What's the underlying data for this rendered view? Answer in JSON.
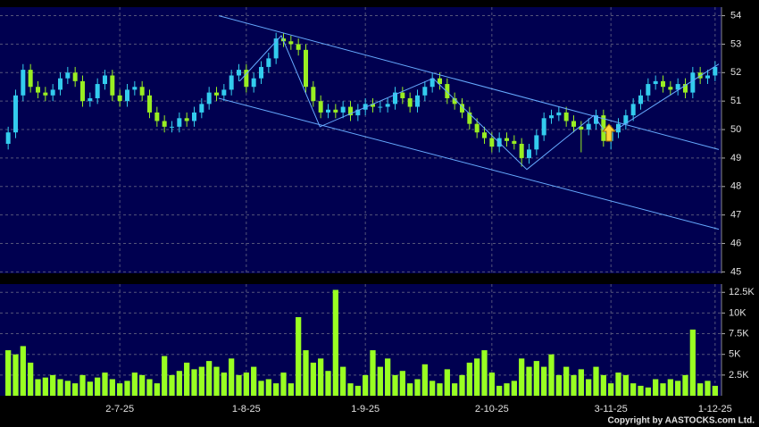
{
  "chart_data": [
    {
      "type": "candlestick",
      "categories": [
        null,
        null,
        null,
        null,
        null,
        null,
        null,
        null,
        null,
        null,
        null,
        null,
        null,
        null,
        null,
        "2-7-25",
        null,
        null,
        null,
        null,
        null,
        null,
        null,
        null,
        null,
        null,
        null,
        null,
        null,
        null,
        null,
        null,
        "1-8-25",
        null,
        null,
        null,
        null,
        null,
        null,
        null,
        null,
        null,
        null,
        null,
        null,
        null,
        null,
        null,
        "1-9-25",
        null,
        null,
        null,
        null,
        null,
        null,
        null,
        null,
        null,
        null,
        null,
        null,
        null,
        null,
        null,
        null,
        "2-10-25",
        null,
        null,
        null,
        null,
        null,
        null,
        null,
        null,
        null,
        null,
        null,
        null,
        null,
        null,
        null,
        "3-11-25",
        null,
        null,
        null,
        null,
        null,
        null,
        null,
        null,
        null,
        null,
        null,
        null,
        null,
        "1-12-25"
      ],
      "open": [
        49.5,
        49.9,
        51.2,
        52.1,
        51.5,
        51.3,
        51.2,
        51.4,
        51.8,
        52.0,
        51.7,
        51.0,
        51.1,
        51.6,
        51.9,
        51.2,
        51.0,
        51.4,
        51.5,
        51.2,
        50.6,
        50.3,
        50.1,
        50.1,
        50.4,
        50.3,
        50.6,
        50.9,
        51.3,
        51.2,
        51.4,
        51.9,
        52.1,
        51.5,
        51.8,
        52.2,
        52.5,
        53.2,
        53.1,
        53.0,
        52.8,
        51.5,
        51.0,
        50.6,
        50.7,
        50.6,
        50.8,
        50.5,
        50.7,
        50.9,
        50.8,
        50.8,
        50.9,
        51.3,
        51.1,
        50.8,
        51.2,
        51.5,
        51.8,
        51.6,
        51.1,
        50.9,
        50.6,
        50.2,
        49.9,
        49.7,
        49.4,
        49.7,
        49.6,
        49.5,
        49.0,
        49.3,
        49.8,
        50.4,
        50.5,
        50.6,
        50.3,
        50.1,
        50.0,
        50.2,
        50.5,
        49.6,
        49.9,
        50.2,
        50.5,
        50.9,
        51.2,
        51.6,
        51.7,
        51.5,
        51.4,
        51.6,
        51.3,
        52.0,
        51.8,
        51.9
      ],
      "high": [
        50.1,
        51.4,
        52.3,
        52.3,
        51.7,
        51.5,
        51.6,
        52.0,
        52.2,
        52.2,
        51.9,
        51.3,
        51.8,
        52.1,
        52.1,
        51.4,
        51.6,
        51.7,
        51.7,
        51.4,
        50.8,
        50.5,
        50.3,
        50.6,
        50.6,
        50.8,
        51.1,
        51.5,
        51.5,
        51.6,
        52.1,
        52.3,
        52.3,
        52.0,
        52.4,
        52.7,
        53.4,
        53.4,
        53.3,
        53.2,
        53.0,
        51.7,
        51.2,
        50.9,
        50.9,
        51.0,
        51.0,
        50.9,
        51.1,
        51.1,
        51.0,
        51.1,
        51.5,
        51.5,
        51.3,
        51.4,
        51.7,
        52.0,
        52.0,
        51.8,
        51.3,
        51.1,
        50.8,
        50.4,
        50.1,
        49.9,
        49.9,
        49.9,
        49.8,
        49.7,
        49.5,
        50.0,
        50.6,
        50.7,
        50.8,
        50.8,
        50.5,
        50.3,
        50.4,
        50.7,
        50.7,
        50.1,
        50.4,
        50.7,
        51.1,
        51.4,
        51.8,
        51.9,
        51.9,
        51.7,
        51.8,
        51.8,
        52.2,
        52.2,
        52.1,
        52.4
      ],
      "low": [
        49.3,
        49.7,
        51.0,
        51.3,
        51.1,
        51.0,
        51.0,
        51.2,
        51.6,
        51.5,
        50.8,
        50.8,
        50.9,
        51.4,
        51.0,
        50.8,
        50.8,
        51.2,
        51.0,
        50.4,
        50.1,
        49.9,
        49.9,
        49.9,
        50.1,
        50.1,
        50.4,
        50.7,
        51.0,
        51.0,
        51.2,
        51.7,
        51.3,
        51.3,
        51.6,
        52.0,
        52.3,
        52.9,
        52.8,
        52.6,
        51.3,
        50.8,
        50.4,
        50.4,
        50.4,
        50.4,
        50.3,
        50.3,
        50.5,
        50.6,
        50.6,
        50.6,
        50.7,
        50.9,
        50.6,
        50.6,
        51.0,
        51.3,
        51.4,
        50.9,
        50.7,
        50.4,
        50.0,
        49.7,
        49.5,
        49.2,
        49.2,
        49.4,
        49.3,
        48.7,
        48.8,
        49.1,
        49.6,
        50.2,
        50.3,
        50.1,
        49.9,
        49.2,
        49.8,
        50.0,
        49.4,
        49.3,
        49.7,
        50.0,
        50.3,
        50.7,
        51.0,
        51.4,
        51.3,
        51.2,
        51.2,
        51.1,
        51.1,
        51.6,
        51.6,
        51.7
      ],
      "close": [
        49.9,
        51.2,
        52.1,
        51.5,
        51.3,
        51.2,
        51.4,
        51.8,
        52.0,
        51.7,
        51.0,
        51.1,
        51.6,
        51.9,
        51.2,
        51.0,
        51.4,
        51.5,
        51.2,
        50.6,
        50.3,
        50.1,
        50.1,
        50.4,
        50.3,
        50.6,
        50.9,
        51.3,
        51.2,
        51.4,
        51.9,
        52.1,
        51.5,
        51.8,
        52.2,
        52.5,
        53.2,
        53.1,
        53.0,
        52.8,
        51.5,
        51.0,
        50.6,
        50.7,
        50.6,
        50.8,
        50.5,
        50.7,
        50.9,
        50.8,
        50.8,
        50.9,
        51.3,
        51.1,
        50.8,
        51.2,
        51.5,
        51.8,
        51.6,
        51.1,
        50.9,
        50.6,
        50.2,
        49.9,
        49.7,
        49.4,
        49.7,
        49.6,
        49.5,
        49.0,
        49.3,
        49.8,
        50.4,
        50.5,
        50.6,
        50.3,
        50.1,
        50.0,
        50.2,
        50.5,
        49.6,
        49.9,
        50.2,
        50.5,
        50.9,
        51.2,
        51.6,
        51.7,
        51.5,
        51.4,
        51.6,
        51.3,
        52.0,
        51.8,
        51.9,
        52.2
      ],
      "up_color": "#33ccee",
      "down_color": "#99ee22",
      "ylim": [
        44.95,
        54.3
      ],
      "yticks": [
        45,
        46,
        47,
        48,
        49,
        50,
        51,
        52,
        53,
        54
      ],
      "grid": true,
      "trendlines": [
        {
          "color": "#66aaff",
          "x": [
            28.3,
            95.5
          ],
          "y": [
            54.0,
            49.3
          ]
        },
        {
          "color": "#66aaff",
          "x": [
            28.3,
            95.5
          ],
          "y": [
            51.1,
            46.5
          ]
        },
        {
          "color": "#66aaff",
          "x": [
            31.1,
            36.7,
            41.9,
            57.1,
            69.7,
            78.7,
            80.5,
            95.5
          ],
          "y": [
            51.7,
            53.3,
            50.1,
            51.8,
            48.6,
            50.5,
            49.8,
            52.3
          ]
        }
      ]
    },
    {
      "type": "volume",
      "values": [
        5500,
        5000,
        6000,
        4000,
        2000,
        2200,
        2500,
        2000,
        1800,
        1500,
        2500,
        1700,
        2200,
        2800,
        2000,
        1500,
        1800,
        2800,
        2500,
        2000,
        1500,
        4800,
        2500,
        3000,
        4000,
        3200,
        3500,
        4200,
        3500,
        2800,
        4500,
        2500,
        2800,
        3500,
        1800,
        2000,
        1500,
        2800,
        1500,
        9500,
        5500,
        4000,
        4500,
        3000,
        12800,
        3500,
        1500,
        1200,
        2500,
        5500,
        3500,
        4500,
        2500,
        3000,
        1500,
        2000,
        3800,
        1800,
        1500,
        3200,
        1500,
        2500,
        4000,
        4500,
        5500,
        2800,
        1200,
        1500,
        1800,
        4500,
        3500,
        4200,
        3500,
        5000,
        2500,
        3500,
        2500,
        3200,
        2000,
        3500,
        2500,
        1500,
        2800,
        2500,
        1500,
        1200,
        1000,
        2000,
        1500,
        2000,
        1800,
        2500,
        8000,
        1500,
        1800,
        1200
      ],
      "color": "#99ff22",
      "ylim": [
        0,
        13500
      ],
      "yticks": [
        {
          "value": 2500,
          "label": "2.5K"
        },
        {
          "value": 5000,
          "label": "5K"
        },
        {
          "value": 7500,
          "label": "7.5K"
        },
        {
          "value": 10000,
          "label": "10K"
        },
        {
          "value": 12500,
          "label": "12.5K"
        }
      ],
      "grid": true,
      "footer": "Copyright by AASTOCKS.com Ltd."
    }
  ]
}
